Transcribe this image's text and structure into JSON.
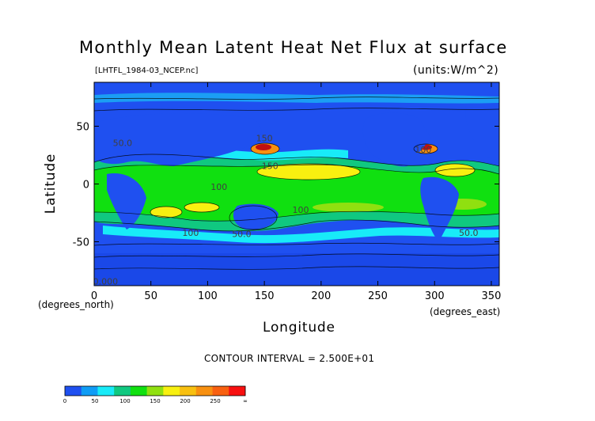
{
  "chart_data": {
    "type": "heatmap",
    "title": "Monthly Mean Latent Heat Net Flux at surface",
    "subtitle": "[LHTFL_1984-03_NCEP.nc]",
    "units": "(units:W/m^2)",
    "xlabel": "Longitude",
    "ylabel": "Latitude",
    "xunits": "(degrees_east)",
    "yunits": "(degrees_north)",
    "xlim": [
      0,
      357
    ],
    "ylim": [
      -88,
      88
    ],
    "xticks": [
      "0",
      "50",
      "100",
      "150",
      "200",
      "250",
      "300",
      "350"
    ],
    "yticks": [
      "50",
      "0",
      "-50"
    ],
    "contour_interval": "CONTOUR INTERVAL = 2.500E+01",
    "colorbar": {
      "ticks": [
        "0",
        "50",
        "100",
        "150",
        "200",
        "250",
        "∞"
      ],
      "colors": [
        "#1f50f0",
        "#0f9cf5",
        "#18ebf8",
        "#10c880",
        "#10e010",
        "#90e010",
        "#f8f010",
        "#f8c010",
        "#f89010",
        "#f86010",
        "#f81010"
      ]
    },
    "contour_labels": [
      {
        "lon": 150,
        "lat": 37,
        "text": "150"
      },
      {
        "lon": 155,
        "lat": 13,
        "text": "150"
      },
      {
        "lon": 182,
        "lat": -25,
        "text": "100"
      },
      {
        "lon": 85,
        "lat": -45,
        "text": "100"
      },
      {
        "lon": 130,
        "lat": -46,
        "text": "50.0"
      },
      {
        "lon": 290,
        "lat": 27,
        "text": "100"
      },
      {
        "lon": 330,
        "lat": -45,
        "text": "50.0"
      },
      {
        "lon": 25,
        "lat": 33,
        "text": "50.0"
      },
      {
        "lon": 10,
        "lat": -87,
        "text": "0.000"
      },
      {
        "lon": 110,
        "lat": -5,
        "text": "100"
      }
    ]
  }
}
